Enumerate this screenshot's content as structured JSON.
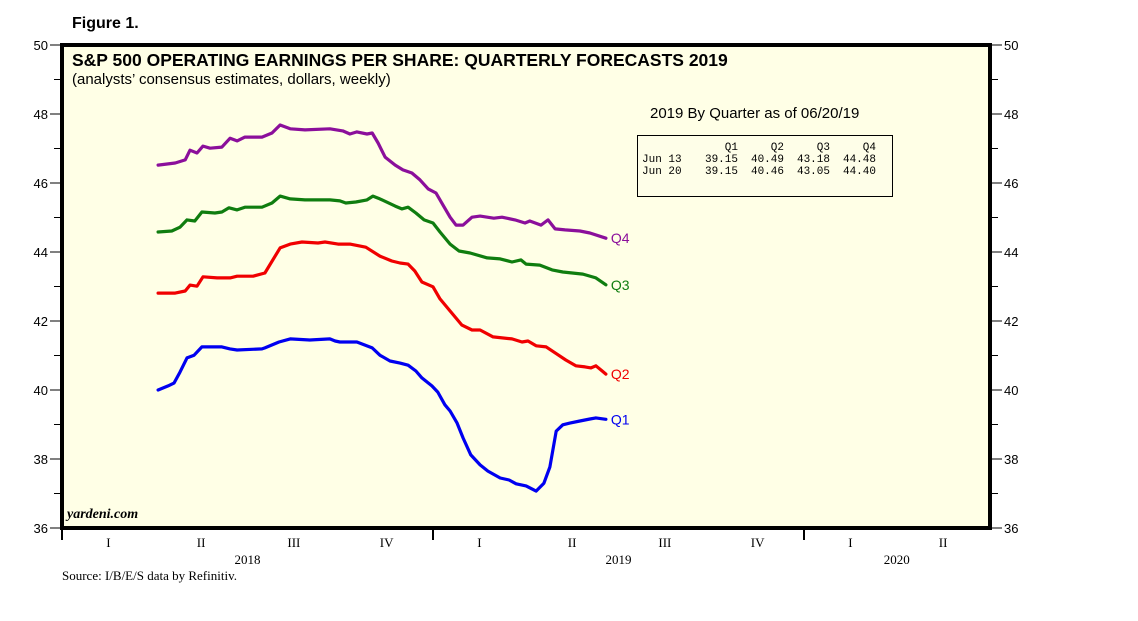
{
  "figure_label": "Figure 1.",
  "source": "Source: I/B/E/S data by Refinitiv.",
  "watermark": "yardeni.com",
  "chart_data": {
    "type": "line",
    "title": "S&P 500 OPERATING EARNINGS PER SHARE: QUARTERLY FORECASTS 2019",
    "subtitle": "(analysts’ consensus estimates, dollars, weekly)",
    "xlabel": "",
    "ylabel": "",
    "x_units": "decimal year",
    "xlim": [
      2018.0,
      2020.5
    ],
    "ylim": [
      36,
      50
    ],
    "y_ticks": [
      36,
      38,
      40,
      42,
      44,
      46,
      48,
      50
    ],
    "y_minor_step": 1,
    "grid": false,
    "background": "#ffffe6",
    "x_quarter_labels": [
      {
        "label": "I",
        "x": 2018.125
      },
      {
        "label": "II",
        "x": 2018.375
      },
      {
        "label": "III",
        "x": 2018.625
      },
      {
        "label": "IV",
        "x": 2018.875
      },
      {
        "label": "I",
        "x": 2019.125
      },
      {
        "label": "II",
        "x": 2019.375
      },
      {
        "label": "III",
        "x": 2019.625
      },
      {
        "label": "IV",
        "x": 2019.875
      },
      {
        "label": "I",
        "x": 2020.125
      },
      {
        "label": "II",
        "x": 2020.375
      }
    ],
    "x_year_labels": [
      {
        "label": "2018",
        "x": 2018.5
      },
      {
        "label": "2019",
        "x": 2019.5
      },
      {
        "label": "2020",
        "x": 2020.25
      }
    ],
    "year_boundaries": [
      2019.0,
      2020.0
    ],
    "series": [
      {
        "name": "Q4",
        "color": "#8b0f9b",
        "x": [
          2018.259,
          2018.305,
          2018.332,
          2018.345,
          2018.364,
          2018.38,
          2018.399,
          2018.431,
          2018.453,
          2018.472,
          2018.493,
          2018.539,
          2018.566,
          2018.588,
          2018.615,
          2018.655,
          2018.722,
          2018.757,
          2018.776,
          2018.795,
          2018.822,
          2018.836,
          2018.852,
          2018.871,
          2018.898,
          2018.919,
          2018.943,
          2018.965,
          2018.987,
          2019.008,
          2019.027,
          2019.046,
          2019.062,
          2019.081,
          2019.105,
          2019.127,
          2019.164,
          2019.186,
          2019.221,
          2019.248,
          2019.261,
          2019.291,
          2019.31,
          2019.329,
          2019.356,
          2019.396,
          2019.423,
          2019.466
        ],
        "values": [
          46.52,
          46.58,
          46.67,
          46.95,
          46.87,
          47.07,
          47.01,
          47.04,
          47.3,
          47.22,
          47.33,
          47.33,
          47.45,
          47.68,
          47.57,
          47.54,
          47.57,
          47.51,
          47.42,
          47.48,
          47.42,
          47.45,
          47.16,
          46.75,
          46.52,
          46.38,
          46.29,
          46.09,
          45.83,
          45.71,
          45.36,
          45.01,
          44.78,
          44.78,
          45.01,
          45.04,
          44.98,
          45.01,
          44.93,
          44.84,
          44.9,
          44.78,
          44.93,
          44.67,
          44.64,
          44.61,
          44.55,
          44.4
        ]
      },
      {
        "name": "Q3",
        "color": "#0f7d0f",
        "x": [
          2018.259,
          2018.296,
          2018.318,
          2018.337,
          2018.358,
          2018.377,
          2018.412,
          2018.431,
          2018.45,
          2018.472,
          2018.493,
          2018.539,
          2018.566,
          2018.588,
          2018.615,
          2018.655,
          2018.722,
          2018.749,
          2018.765,
          2018.792,
          2018.822,
          2018.838,
          2018.857,
          2018.898,
          2018.916,
          2018.933,
          2018.954,
          2018.976,
          2019.0,
          2019.019,
          2019.046,
          2019.07,
          2019.1,
          2019.146,
          2019.181,
          2019.213,
          2019.237,
          2019.251,
          2019.288,
          2019.321,
          2019.35,
          2019.404,
          2019.439,
          2019.466
        ],
        "values": [
          44.58,
          44.61,
          44.72,
          44.93,
          44.9,
          45.16,
          45.13,
          45.16,
          45.28,
          45.22,
          45.3,
          45.3,
          45.42,
          45.62,
          45.54,
          45.51,
          45.51,
          45.48,
          45.42,
          45.45,
          45.51,
          45.62,
          45.54,
          45.33,
          45.25,
          45.3,
          45.13,
          44.93,
          44.84,
          44.58,
          44.23,
          44.03,
          43.97,
          43.83,
          43.8,
          43.71,
          43.77,
          43.65,
          43.62,
          43.48,
          43.42,
          43.36,
          43.25,
          43.05
        ]
      },
      {
        "name": "Q2",
        "color": "#f00000",
        "x": [
          2018.259,
          2018.305,
          2018.332,
          2018.345,
          2018.364,
          2018.38,
          2018.418,
          2018.453,
          2018.472,
          2018.515,
          2018.547,
          2018.588,
          2018.615,
          2018.647,
          2018.69,
          2018.709,
          2018.744,
          2018.776,
          2018.819,
          2018.857,
          2018.889,
          2018.911,
          2018.933,
          2018.951,
          2018.97,
          2019.0,
          2019.019,
          2019.046,
          2019.078,
          2019.105,
          2019.127,
          2019.162,
          2019.213,
          2019.24,
          2019.256,
          2019.278,
          2019.305,
          2019.334,
          2019.358,
          2019.385,
          2019.41,
          2019.426,
          2019.439,
          2019.456,
          2019.466
        ],
        "values": [
          42.81,
          42.81,
          42.87,
          43.04,
          43.01,
          43.28,
          43.25,
          43.25,
          43.3,
          43.3,
          43.39,
          44.12,
          44.23,
          44.29,
          44.26,
          44.29,
          44.23,
          44.23,
          44.14,
          43.88,
          43.74,
          43.68,
          43.65,
          43.45,
          43.13,
          42.99,
          42.64,
          42.29,
          41.88,
          41.74,
          41.74,
          41.54,
          41.48,
          41.39,
          41.42,
          41.28,
          41.25,
          41.04,
          40.87,
          40.7,
          40.67,
          40.64,
          40.7,
          40.55,
          40.46
        ]
      },
      {
        "name": "Q1",
        "color": "#0000f0",
        "x": [
          2018.259,
          2018.286,
          2018.302,
          2018.318,
          2018.337,
          2018.356,
          2018.377,
          2018.407,
          2018.431,
          2018.453,
          2018.472,
          2018.539,
          2018.547,
          2018.585,
          2018.615,
          2018.668,
          2018.722,
          2018.736,
          2018.749,
          2018.795,
          2018.836,
          2018.857,
          2018.884,
          2018.911,
          2018.933,
          2018.954,
          2018.97,
          2018.997,
          2019.013,
          2019.032,
          2019.046,
          2019.065,
          2019.081,
          2019.102,
          2019.127,
          2019.148,
          2019.181,
          2019.205,
          2019.224,
          2019.251,
          2019.278,
          2019.299,
          2019.315,
          2019.332,
          2019.35,
          2019.369,
          2019.396,
          2019.423,
          2019.439,
          2019.466
        ],
        "values": [
          40.0,
          40.12,
          40.2,
          40.52,
          40.93,
          41.01,
          41.25,
          41.25,
          41.25,
          41.19,
          41.16,
          41.19,
          41.22,
          41.39,
          41.48,
          41.45,
          41.48,
          41.42,
          41.39,
          41.39,
          41.22,
          41.01,
          40.84,
          40.78,
          40.72,
          40.55,
          40.35,
          40.12,
          39.94,
          39.57,
          39.39,
          39.04,
          38.61,
          38.12,
          37.83,
          37.65,
          37.45,
          37.39,
          37.28,
          37.22,
          37.07,
          37.3,
          37.77,
          38.81,
          38.99,
          39.04,
          39.1,
          39.16,
          39.19,
          39.15
        ]
      }
    ],
    "inset": {
      "title": "2019 By Quarter as of 06/20/19",
      "columns": [
        "",
        "Q1",
        "Q2",
        "Q3",
        "Q4"
      ],
      "rows": [
        {
          "label": "Jun 13",
          "values": [
            "39.15",
            "40.49",
            "43.18",
            "44.48"
          ]
        },
        {
          "label": "Jun 20",
          "values": [
            "39.15",
            "40.46",
            "43.05",
            "44.40"
          ]
        }
      ]
    }
  }
}
